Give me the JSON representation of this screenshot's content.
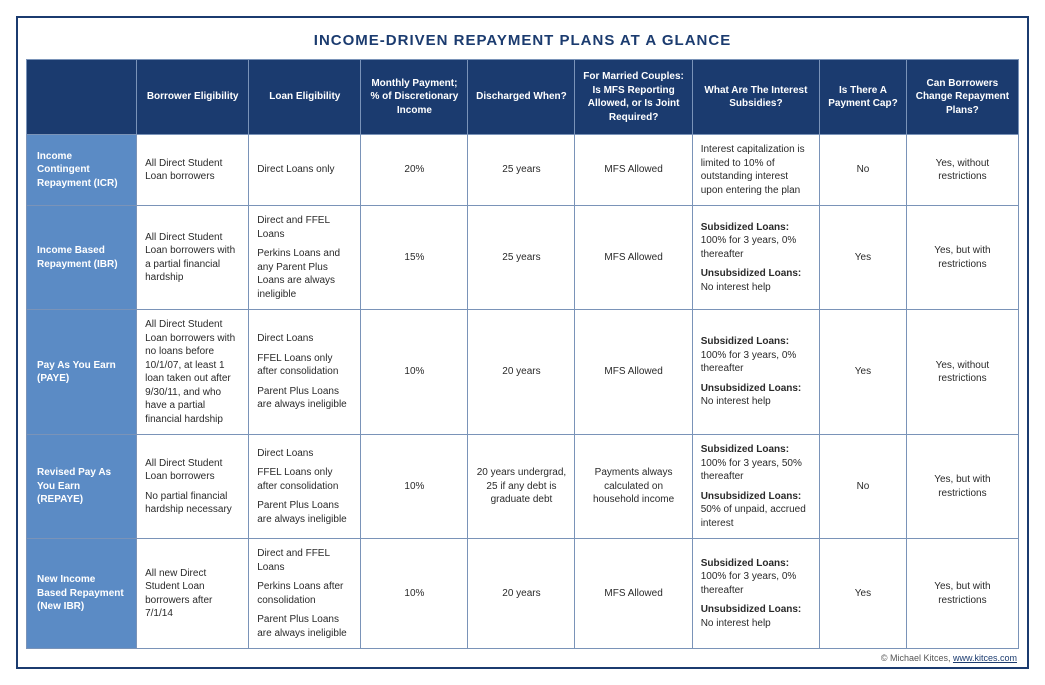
{
  "title": "INCOME-DRIVEN REPAYMENT PLANS AT A GLANCE",
  "columns": [
    "Borrower Eligibility",
    "Loan Eligibility",
    "Monthly Payment; % of Discretionary Income",
    "Discharged When?",
    "For Married Couples: Is MFS Reporting Allowed, or Is Joint Required?",
    "What Are The Interest Subsidies?",
    "Is There A Payment Cap?",
    "Can Borrowers Change Repayment Plans?"
  ],
  "rows": [
    {
      "label": "Income Contingent Repayment (ICR)",
      "borrower": [
        "All Direct Student Loan borrowers"
      ],
      "loan": [
        "Direct Loans only"
      ],
      "payment": "20%",
      "discharged": "25 years",
      "mfs": "MFS Allowed",
      "subsidies": [
        {
          "bold": "",
          "text": "Interest capitalization is limited to 10% of outstanding interest upon entering the plan"
        }
      ],
      "cap": "No",
      "change": "Yes, without restrictions"
    },
    {
      "label": "Income Based Repayment (IBR)",
      "borrower": [
        "All Direct Student Loan borrowers with a partial financial hardship"
      ],
      "loan": [
        "Direct and FFEL Loans",
        "Perkins Loans and any Parent Plus Loans are always ineligible"
      ],
      "payment": "15%",
      "discharged": "25 years",
      "mfs": "MFS Allowed",
      "subsidies": [
        {
          "bold": "Subsidized Loans:",
          "text": "100% for 3 years, 0% thereafter"
        },
        {
          "bold": "Unsubsidized Loans:",
          "text": "No interest help"
        }
      ],
      "cap": "Yes",
      "change": "Yes, but with restrictions"
    },
    {
      "label": "Pay As You Earn (PAYE)",
      "borrower": [
        "All Direct Student Loan borrowers with no loans before 10/1/07, at least 1 loan taken out after 9/30/11, and who have a partial financial hardship"
      ],
      "loan": [
        "Direct Loans",
        "FFEL Loans only after consolidation",
        "Parent Plus Loans are always ineligible"
      ],
      "payment": "10%",
      "discharged": "20 years",
      "mfs": "MFS Allowed",
      "subsidies": [
        {
          "bold": "Subsidized Loans:",
          "text": "100% for 3 years, 0% thereafter"
        },
        {
          "bold": "Unsubsidized Loans:",
          "text": "No interest help"
        }
      ],
      "cap": "Yes",
      "change": "Yes, without restrictions"
    },
    {
      "label": "Revised Pay As You Earn (REPAYE)",
      "borrower": [
        "All Direct Student Loan borrowers",
        "No partial financial hardship necessary"
      ],
      "loan": [
        "Direct Loans",
        "FFEL Loans only after consolidation",
        "Parent Plus Loans are always ineligible"
      ],
      "payment": "10%",
      "discharged": "20 years undergrad, 25 if any debt is graduate debt",
      "mfs": "Payments always calculated on household income",
      "subsidies": [
        {
          "bold": "Subsidized Loans:",
          "text": "100% for 3 years, 50% thereafter"
        },
        {
          "bold": "Unsubsidized Loans:",
          "text": "50% of unpaid, accrued interest"
        }
      ],
      "cap": "No",
      "change": "Yes, but with restrictions"
    },
    {
      "label": "New Income Based Repayment (New IBR)",
      "borrower": [
        "All new Direct Student Loan borrowers after 7/1/14"
      ],
      "loan": [
        "Direct and FFEL Loans",
        "Perkins Loans after consolidation",
        "Parent Plus Loans are always ineligible"
      ],
      "payment": "10%",
      "discharged": "20 years",
      "mfs": "MFS Allowed",
      "subsidies": [
        {
          "bold": "Subsidized Loans:",
          "text": "100% for 3 years, 0% thereafter"
        },
        {
          "bold": "Unsubsidized Loans:",
          "text": "No interest help"
        }
      ],
      "cap": "Yes",
      "change": "Yes, but with restrictions"
    }
  ],
  "credit": {
    "prefix": "© Michael Kitces, ",
    "link_text": "www.kitces.com",
    "link_href": "#"
  },
  "colors": {
    "header_bg": "#1b3b6f",
    "rowlabel_bg": "#5b8bc5",
    "border": "#7a93b8",
    "text": "#2a2a2a"
  }
}
